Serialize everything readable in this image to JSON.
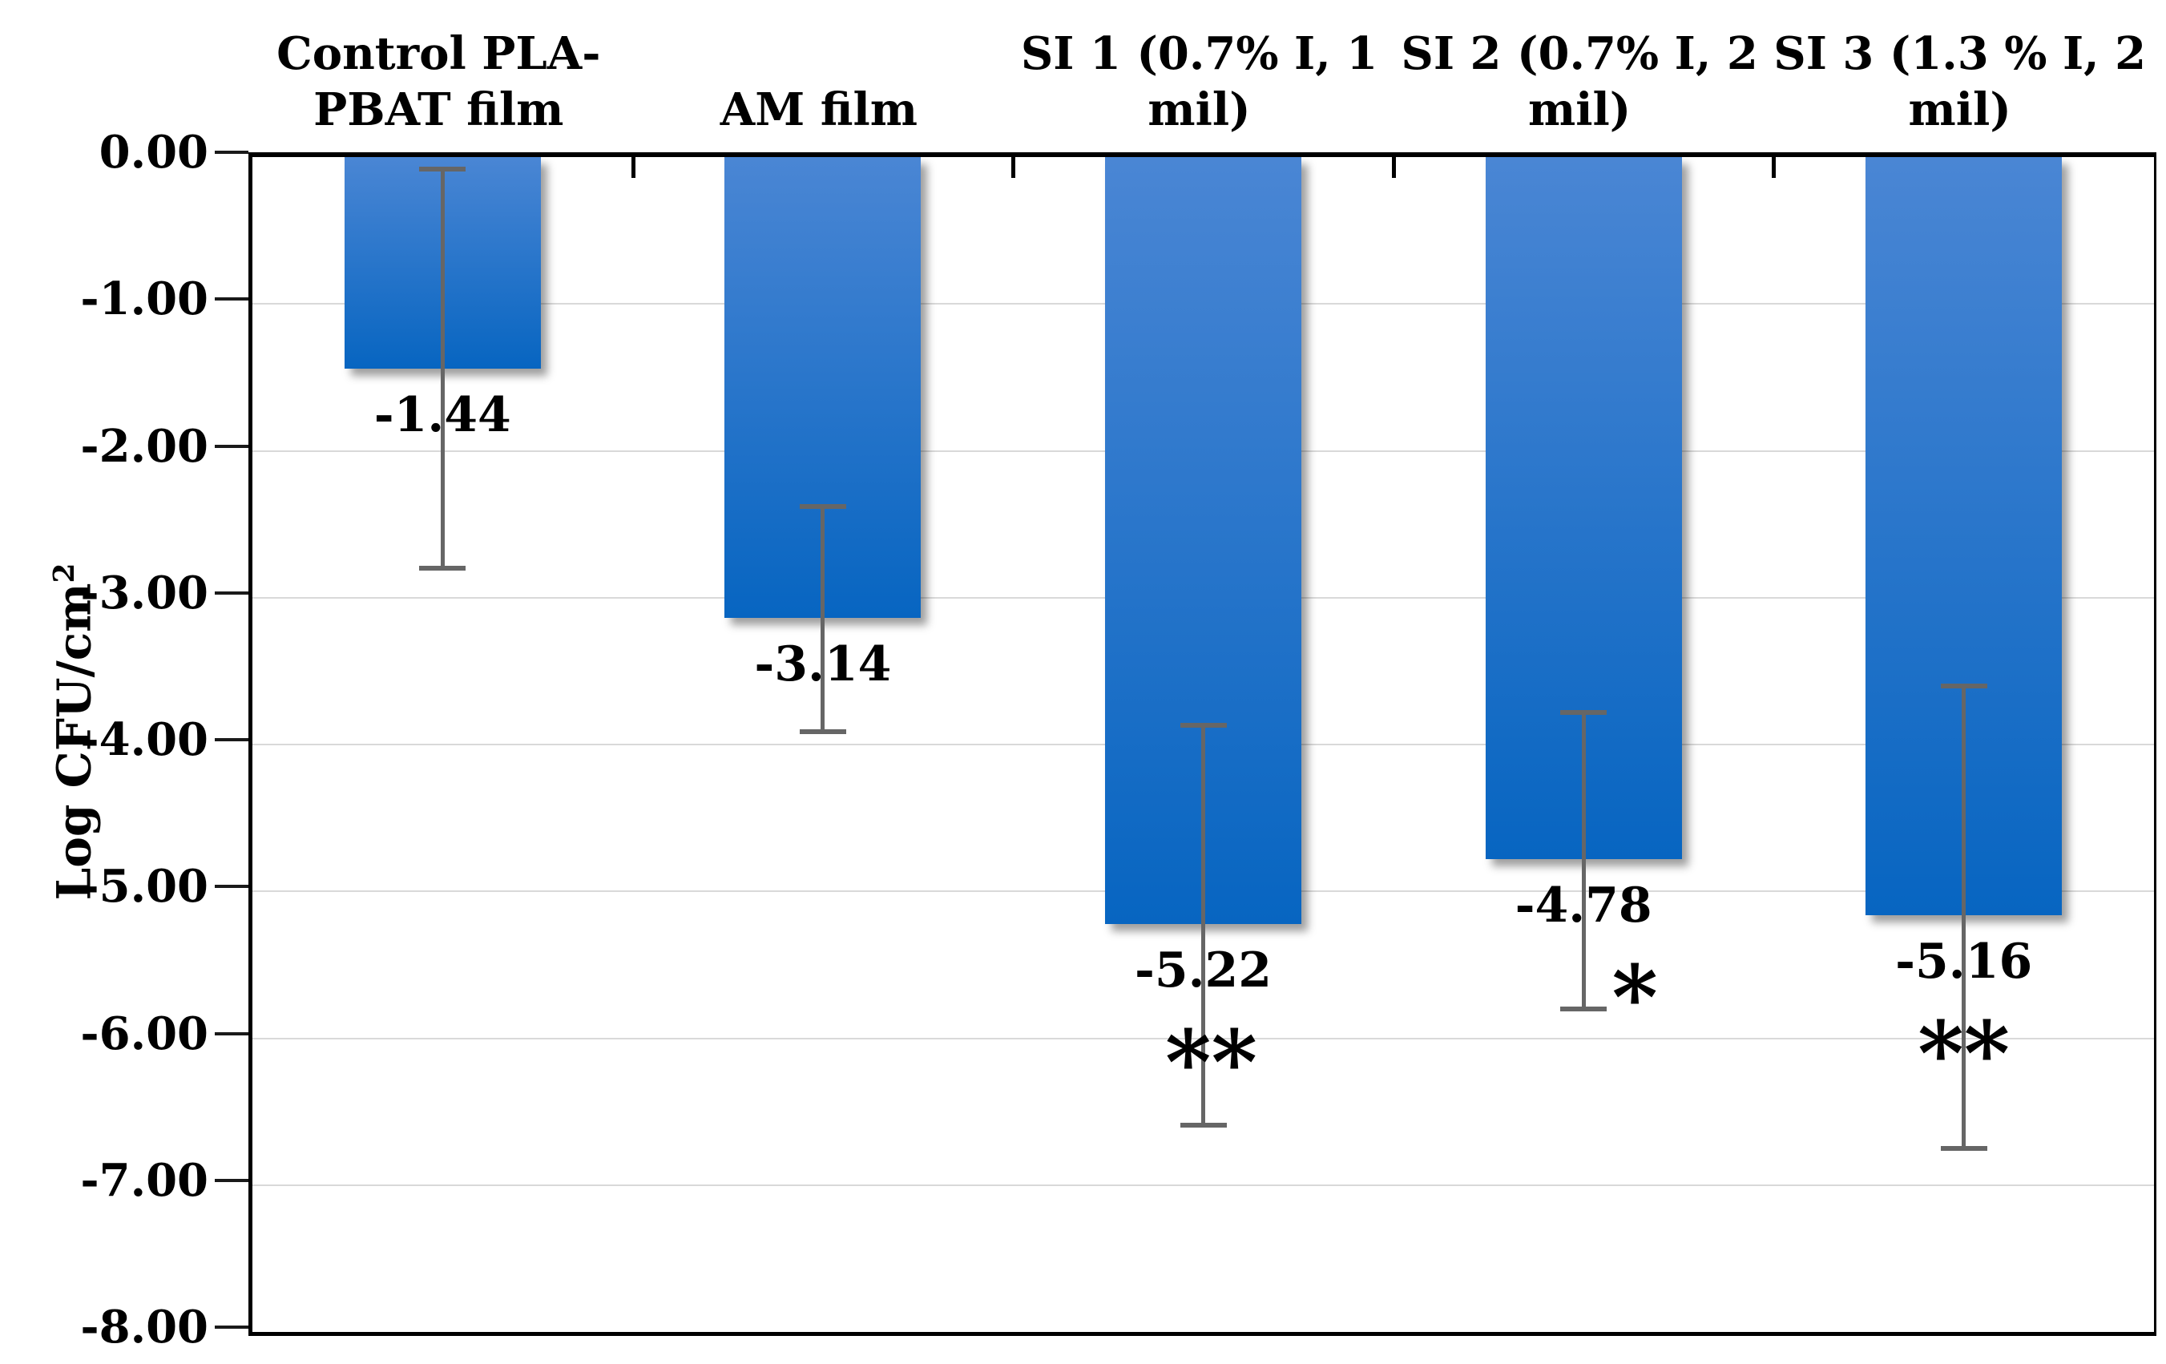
{
  "chart_data": {
    "type": "bar",
    "title": "",
    "ylabel": {
      "text": "Log CFU/cm",
      "superscript": "2"
    },
    "ylim": [
      0,
      -8
    ],
    "y_tick_step": 1,
    "y_ticks": [
      "0.00",
      "-1.00",
      "-2.00",
      "-3.00",
      "-4.00",
      "-5.00",
      "-6.00",
      "-7.00",
      "-8.00"
    ],
    "grid": true,
    "legend": false,
    "categories": [
      "Control PLA-\nPBAT film",
      "AM film",
      "SI 1 (0.7% I, 1\nmil)",
      "SI 2 (0.7% I, 2\nmil)",
      "SI 3 (1.3 % I, 2\nmil)"
    ],
    "values": [
      -1.44,
      -3.14,
      -5.22,
      -4.78,
      -5.16
    ],
    "data_labels": [
      "-1.44",
      "-3.14",
      "-5.22",
      "-4.78",
      "-5.16"
    ],
    "significance": [
      "",
      "",
      "**",
      "*",
      "**"
    ],
    "sig_x_offsets": [
      0,
      0,
      10,
      64,
      0
    ],
    "error_bars": [
      {
        "upper": -0.08,
        "lower": -2.8
      },
      {
        "upper": -2.38,
        "lower": -3.91
      },
      {
        "upper": -3.87,
        "lower": -6.59
      },
      {
        "upper": -3.78,
        "lower": -5.8
      },
      {
        "upper": -3.6,
        "lower": -6.75
      }
    ],
    "colors": {
      "bar_top": "#4a86d4",
      "bar_bottom": "#0765c1",
      "error_bar": "#666666",
      "gridline": "#d9d9d9",
      "frame": "#000000",
      "text": "#000000"
    }
  }
}
